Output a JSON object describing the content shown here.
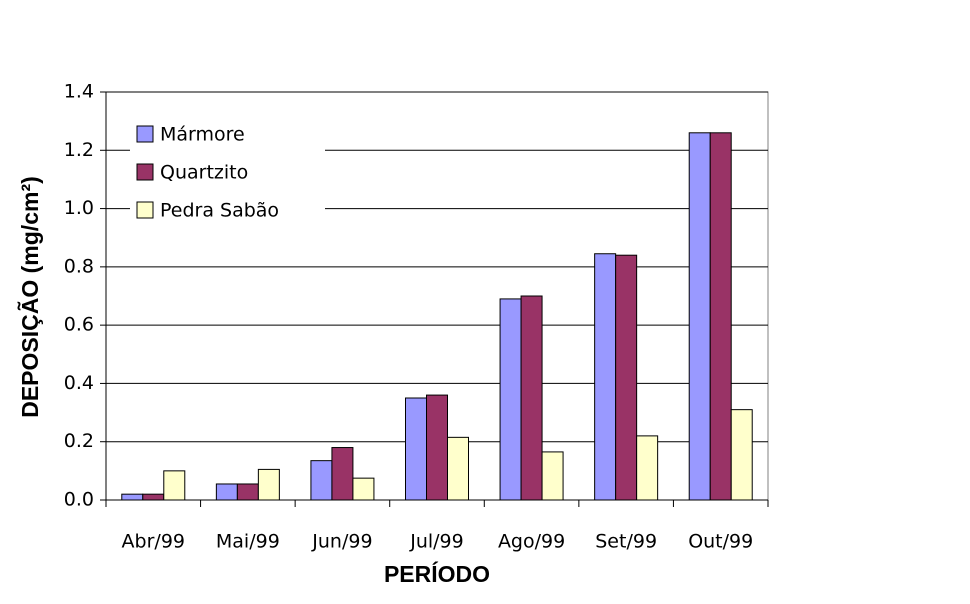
{
  "chart_data": {
    "type": "bar",
    "x_label": "PERÍODO",
    "y_label": "DEPOSIÇÃO (mg/cm²)",
    "categories": [
      "Abr/99",
      "Mai/99",
      "Jun/99",
      "Jul/99",
      "Ago/99",
      "Set/99",
      "Out/99"
    ],
    "series": [
      {
        "name": "Mármore",
        "color": "#9999ff",
        "values": [
          0.02,
          0.055,
          0.135,
          0.35,
          0.69,
          0.845,
          1.26
        ]
      },
      {
        "name": "Quartzito",
        "color": "#993366",
        "values": [
          0.02,
          0.055,
          0.18,
          0.36,
          0.7,
          0.84,
          1.26
        ]
      },
      {
        "name": "Pedra Sabão",
        "color": "#ffffcc",
        "values": [
          0.1,
          0.105,
          0.075,
          0.215,
          0.165,
          0.22,
          0.31
        ]
      }
    ],
    "ylim": [
      0,
      1.4
    ],
    "yticks": [
      {
        "value": 0,
        "label": "0.0"
      },
      0.2,
      0.4,
      0.6,
      0.8,
      {
        "value": 1,
        "label": "1.0"
      },
      1.2,
      1.4
    ],
    "grid": true,
    "legend": "upper-left"
  }
}
